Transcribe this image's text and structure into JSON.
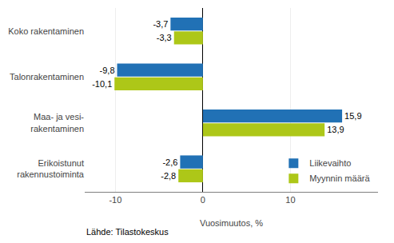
{
  "chart_data": {
    "type": "bar",
    "orientation": "horizontal",
    "categories": [
      "Erikoistunut\nrakennustoiminta",
      "Maa- ja vesi-\nrakentaminen",
      "Talonrakentaminen",
      "Koko rakentaminen"
    ],
    "series": [
      {
        "name": "Liikevaihto",
        "color": "#2171b5",
        "values": [
          -2.6,
          15.9,
          -9.8,
          -3.7
        ],
        "value_labels": [
          "-2,6",
          "15,9",
          "-9,8",
          "-3,7"
        ]
      },
      {
        "name": "Myynnin määrä",
        "color": "#adc718",
        "values": [
          -2.8,
          13.9,
          -10.1,
          -3.3
        ],
        "value_labels": [
          "-2,8",
          "13,9",
          "-10,1",
          "-3,3"
        ]
      }
    ],
    "xlabel": "Vuosimuutos, %",
    "xlim": [
      -13.5,
      20
    ],
    "xticks": [
      -10,
      0,
      10
    ],
    "grid": true,
    "legend": "lower right",
    "data_labels": true,
    "annotations": [
      "Lähde: Tilastokeskus"
    ]
  }
}
